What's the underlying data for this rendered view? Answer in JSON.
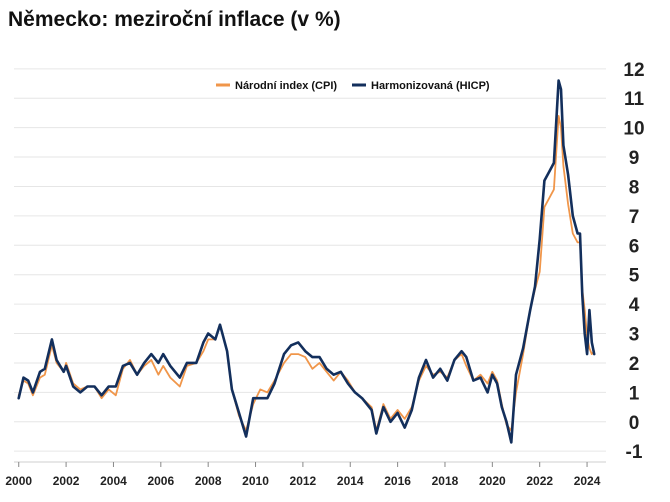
{
  "chart_data": {
    "type": "line",
    "title": "Německo: meziroční inflace (v %)",
    "xlabel": "",
    "ylabel": "",
    "xlim": [
      1999.8,
      2024.8
    ],
    "ylim": [
      -1.3,
      12.3
    ],
    "y_ticks": [
      "-1",
      "0",
      "1",
      "2",
      "3",
      "4",
      "5",
      "6",
      "7",
      "8",
      "9",
      "10",
      "11",
      "12"
    ],
    "x_ticks": [
      "2000",
      "2002",
      "2004",
      "2006",
      "2008",
      "2010",
      "2012",
      "2014",
      "2016",
      "2018",
      "2020",
      "2022",
      "2024"
    ],
    "grid": true,
    "legend_position": "top-center",
    "series": [
      {
        "name": "Národní index (CPI)",
        "color": "#f0964a",
        "points": [
          [
            2000.0,
            0.9
          ],
          [
            2000.2,
            1.4
          ],
          [
            2000.4,
            1.3
          ],
          [
            2000.6,
            0.9
          ],
          [
            2000.9,
            1.5
          ],
          [
            2001.1,
            1.6
          ],
          [
            2001.4,
            2.6
          ],
          [
            2001.6,
            2.0
          ],
          [
            2001.9,
            1.7
          ],
          [
            2002.0,
            2.0
          ],
          [
            2002.3,
            1.3
          ],
          [
            2002.6,
            1.1
          ],
          [
            2002.9,
            1.2
          ],
          [
            2003.2,
            1.2
          ],
          [
            2003.5,
            0.8
          ],
          [
            2003.8,
            1.1
          ],
          [
            2004.1,
            0.9
          ],
          [
            2004.4,
            1.8
          ],
          [
            2004.7,
            2.1
          ],
          [
            2005.0,
            1.6
          ],
          [
            2005.3,
            1.9
          ],
          [
            2005.6,
            2.1
          ],
          [
            2005.9,
            1.6
          ],
          [
            2006.1,
            1.9
          ],
          [
            2006.4,
            1.5
          ],
          [
            2006.8,
            1.2
          ],
          [
            2007.1,
            1.9
          ],
          [
            2007.5,
            2.0
          ],
          [
            2007.8,
            2.4
          ],
          [
            2008.0,
            2.8
          ],
          [
            2008.3,
            2.8
          ],
          [
            2008.5,
            3.3
          ],
          [
            2008.8,
            2.4
          ],
          [
            2009.0,
            1.1
          ],
          [
            2009.3,
            0.2
          ],
          [
            2009.6,
            -0.3
          ],
          [
            2009.9,
            0.6
          ],
          [
            2010.2,
            1.1
          ],
          [
            2010.5,
            1.0
          ],
          [
            2010.8,
            1.4
          ],
          [
            2011.2,
            2.0
          ],
          [
            2011.5,
            2.3
          ],
          [
            2011.8,
            2.3
          ],
          [
            2012.1,
            2.2
          ],
          [
            2012.4,
            1.8
          ],
          [
            2012.7,
            2.0
          ],
          [
            2013.0,
            1.7
          ],
          [
            2013.3,
            1.4
          ],
          [
            2013.6,
            1.7
          ],
          [
            2013.9,
            1.4
          ],
          [
            2014.2,
            1.0
          ],
          [
            2014.5,
            0.8
          ],
          [
            2014.9,
            0.5
          ],
          [
            2015.1,
            -0.3
          ],
          [
            2015.4,
            0.6
          ],
          [
            2015.7,
            0.1
          ],
          [
            2016.0,
            0.4
          ],
          [
            2016.3,
            0.1
          ],
          [
            2016.6,
            0.5
          ],
          [
            2016.9,
            1.4
          ],
          [
            2017.2,
            1.9
          ],
          [
            2017.5,
            1.6
          ],
          [
            2017.8,
            1.7
          ],
          [
            2018.1,
            1.5
          ],
          [
            2018.4,
            2.1
          ],
          [
            2018.7,
            2.3
          ],
          [
            2018.9,
            1.9
          ],
          [
            2019.2,
            1.4
          ],
          [
            2019.5,
            1.6
          ],
          [
            2019.8,
            1.3
          ],
          [
            2020.0,
            1.7
          ],
          [
            2020.2,
            1.4
          ],
          [
            2020.4,
            0.6
          ],
          [
            2020.6,
            -0.1
          ],
          [
            2020.8,
            -0.3
          ],
          [
            2021.0,
            1.0
          ],
          [
            2021.3,
            2.3
          ],
          [
            2021.6,
            3.8
          ],
          [
            2021.8,
            4.5
          ],
          [
            2022.0,
            5.1
          ],
          [
            2022.2,
            7.3
          ],
          [
            2022.4,
            7.6
          ],
          [
            2022.6,
            7.9
          ],
          [
            2022.8,
            10.4
          ],
          [
            2022.9,
            10.0
          ],
          [
            2023.0,
            8.7
          ],
          [
            2023.2,
            7.4
          ],
          [
            2023.4,
            6.4
          ],
          [
            2023.6,
            6.1
          ],
          [
            2023.7,
            6.1
          ],
          [
            2023.8,
            4.5
          ],
          [
            2023.9,
            3.8
          ],
          [
            2024.0,
            2.9
          ],
          [
            2024.1,
            2.5
          ],
          [
            2024.2,
            2.3
          ],
          [
            2024.3,
            2.4
          ]
        ]
      },
      {
        "name": "Harmonizovaná (HICP)",
        "color": "#132f5c",
        "points": [
          [
            2000.0,
            0.8
          ],
          [
            2000.2,
            1.5
          ],
          [
            2000.4,
            1.4
          ],
          [
            2000.6,
            1.0
          ],
          [
            2000.9,
            1.7
          ],
          [
            2001.1,
            1.8
          ],
          [
            2001.4,
            2.8
          ],
          [
            2001.6,
            2.1
          ],
          [
            2001.9,
            1.7
          ],
          [
            2002.0,
            1.9
          ],
          [
            2002.3,
            1.2
          ],
          [
            2002.6,
            1.0
          ],
          [
            2002.9,
            1.2
          ],
          [
            2003.2,
            1.2
          ],
          [
            2003.5,
            0.9
          ],
          [
            2003.8,
            1.2
          ],
          [
            2004.1,
            1.2
          ],
          [
            2004.4,
            1.9
          ],
          [
            2004.7,
            2.0
          ],
          [
            2005.0,
            1.6
          ],
          [
            2005.3,
            2.0
          ],
          [
            2005.6,
            2.3
          ],
          [
            2005.9,
            2.0
          ],
          [
            2006.1,
            2.3
          ],
          [
            2006.4,
            1.9
          ],
          [
            2006.8,
            1.5
          ],
          [
            2007.1,
            2.0
          ],
          [
            2007.5,
            2.0
          ],
          [
            2007.8,
            2.7
          ],
          [
            2008.0,
            3.0
          ],
          [
            2008.3,
            2.8
          ],
          [
            2008.5,
            3.3
          ],
          [
            2008.8,
            2.4
          ],
          [
            2009.0,
            1.1
          ],
          [
            2009.3,
            0.3
          ],
          [
            2009.6,
            -0.5
          ],
          [
            2009.9,
            0.8
          ],
          [
            2010.2,
            0.8
          ],
          [
            2010.5,
            0.8
          ],
          [
            2010.8,
            1.3
          ],
          [
            2011.2,
            2.3
          ],
          [
            2011.5,
            2.6
          ],
          [
            2011.8,
            2.7
          ],
          [
            2012.1,
            2.4
          ],
          [
            2012.4,
            2.2
          ],
          [
            2012.7,
            2.2
          ],
          [
            2013.0,
            1.8
          ],
          [
            2013.3,
            1.6
          ],
          [
            2013.6,
            1.7
          ],
          [
            2013.9,
            1.3
          ],
          [
            2014.2,
            1.0
          ],
          [
            2014.5,
            0.8
          ],
          [
            2014.9,
            0.4
          ],
          [
            2015.1,
            -0.4
          ],
          [
            2015.4,
            0.5
          ],
          [
            2015.7,
            0.0
          ],
          [
            2016.0,
            0.3
          ],
          [
            2016.3,
            -0.2
          ],
          [
            2016.6,
            0.4
          ],
          [
            2016.9,
            1.5
          ],
          [
            2017.2,
            2.1
          ],
          [
            2017.5,
            1.5
          ],
          [
            2017.8,
            1.8
          ],
          [
            2018.1,
            1.4
          ],
          [
            2018.4,
            2.1
          ],
          [
            2018.7,
            2.4
          ],
          [
            2018.9,
            2.2
          ],
          [
            2019.2,
            1.4
          ],
          [
            2019.5,
            1.5
          ],
          [
            2019.8,
            1.0
          ],
          [
            2020.0,
            1.6
          ],
          [
            2020.2,
            1.3
          ],
          [
            2020.4,
            0.5
          ],
          [
            2020.6,
            0.0
          ],
          [
            2020.8,
            -0.7
          ],
          [
            2021.0,
            1.6
          ],
          [
            2021.3,
            2.5
          ],
          [
            2021.6,
            3.8
          ],
          [
            2021.8,
            4.6
          ],
          [
            2022.0,
            6.2
          ],
          [
            2022.2,
            8.2
          ],
          [
            2022.4,
            8.5
          ],
          [
            2022.6,
            8.8
          ],
          [
            2022.8,
            11.6
          ],
          [
            2022.9,
            11.3
          ],
          [
            2023.0,
            9.4
          ],
          [
            2023.2,
            8.4
          ],
          [
            2023.4,
            7.0
          ],
          [
            2023.6,
            6.4
          ],
          [
            2023.7,
            6.4
          ],
          [
            2023.8,
            4.3
          ],
          [
            2023.9,
            3.0
          ],
          [
            2024.0,
            2.3
          ],
          [
            2024.1,
            3.8
          ],
          [
            2024.2,
            2.7
          ],
          [
            2024.3,
            2.3
          ]
        ]
      }
    ]
  }
}
